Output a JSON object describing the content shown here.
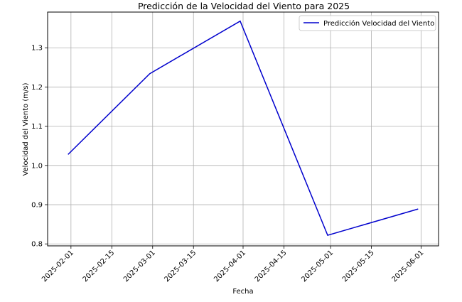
{
  "chart_data": {
    "type": "line",
    "title": "Predicción de la Velocidad del Viento para 2025",
    "xlabel": "Fecha",
    "ylabel": "Velocidad del Viento (m/s)",
    "x_ticks": [
      "2025-02-01",
      "2025-02-15",
      "2025-03-01",
      "2025-03-15",
      "2025-04-01",
      "2025-04-15",
      "2025-05-01",
      "2025-05-15",
      "2025-06-01"
    ],
    "y_ticks": [
      "0.8",
      "0.9",
      "1.0",
      "1.1",
      "1.2",
      "1.3"
    ],
    "xlim": [
      "2025-01-24",
      "2025-06-07"
    ],
    "ylim": [
      0.795,
      1.391
    ],
    "grid": true,
    "legend_position": "top-right",
    "series": [
      {
        "name": "Predicción Velocidad del Viento",
        "color": "#0000cd",
        "x": [
          "2025-01-31",
          "2025-02-28",
          "2025-03-31",
          "2025-04-30",
          "2025-05-31"
        ],
        "y": [
          1.028,
          1.234,
          1.368,
          0.822,
          0.889
        ]
      }
    ]
  }
}
